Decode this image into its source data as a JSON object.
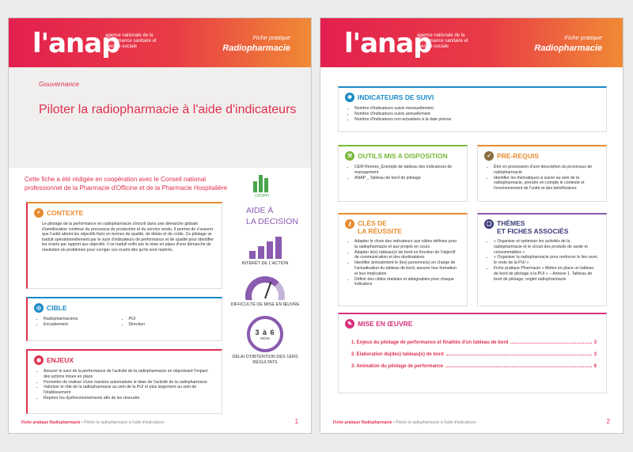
{
  "common": {
    "logo": "l'anap",
    "logo_sub": "agence nationale de la performance sanitaire et médico-sociale",
    "fiche_label": "Fiche pratique",
    "fiche_title": "Radiopharmacie",
    "footer_prefix": "Fiche pratique Radiopharmacie",
    "footer_title": " • Piloter la radiopharmacie à l'aide d'indicateurs"
  },
  "page1": {
    "section": "Gouvernance",
    "title": "Piloter la radiopharmacie à l'aide d'indicateurs",
    "cooperation": "Cette fiche a été rédigée en coopération avec le Conseil national professionnel de la Pharmacie d'Officine et de la Pharmacie Hospitalière",
    "cpoph_label": "CPOPH",
    "contexte": {
      "title": "CONTEXTE",
      "text": "Le pilotage de la performance en radiopharmacie s'inscrit dans une démarche globale d'amélioration continue du processus de production et du service rendu. Il permet de s'assurer que l'unité atteint les objectifs fixés en termes de qualité, de délais et de coûts. Ce pilotage se traduit opérationnellement par le suivi d'indicateurs de performance et de qualité pour identifier les écarts par rapport aux objectifs. Il se traduit enfin par la mise en place d'une démarche de résolution de problèmes pour corriger ces écarts dès qu'ils sont repérés."
    },
    "cible": {
      "title": "CIBLE",
      "items": [
        "Radiopharmaciens",
        "PUI",
        "Encadrement",
        "Direction"
      ]
    },
    "enjeux": {
      "title": "ENJEUX",
      "items": [
        "Assurer le suivi de la performance de l'activité de la radiopharmacie en objectivant l'impact des actions mises en place",
        "Permettre de réaliser d'une manière automatisée le bilan de l'activité de la radiopharmacie",
        "Valoriser le rôle de la radiopharmacie au sein de la PUI et plus largement au sein de l'établissement",
        "Repérer les dysfonctionnements afin de les résoudre"
      ]
    },
    "aide": {
      "title_1": "AIDE À",
      "title_2": "LA DÉCISION",
      "interet_label": "INTÉRÊT DE L'ACTION",
      "difficulte_label": "DIFFICULTÉ DE MISE EN ŒUVRE",
      "timer_value": "3 à 6",
      "timer_unit": "MOIS",
      "delai_label": "DÉLAI D'OBTENTION DES 1ERS RÉSULTATS"
    },
    "page_number": "1"
  },
  "page2": {
    "indicateurs": {
      "title": "INDICATEURS DE SUIVI",
      "items": [
        "Nombre d'indicateurs suivis mensuellement",
        "Nombre d'indicateurs suivis annuellement",
        "Nombre d'indicateurs non-actualisés à la date prévue"
      ]
    },
    "outils": {
      "title": "OUTILS MIS A DISPOSITION",
      "items": [
        "CEM Rennes_Exemple de tableau des indicateurs de management",
        "ANAP _ Tableau de bord de pilotage"
      ]
    },
    "prerequis": {
      "title": "PRE-REQUIS",
      "items": [
        "Être en possession d'une description du processus de radiopharmacie",
        "Identifier les thématiques à suivre au sein de la radiopharmacie, prendre en compte le contexte et l'environnement de l'unité et des bénéficiaires"
      ]
    },
    "cles": {
      "title_1": "CLÉS DE",
      "title_2": "LA RÉUSSITE",
      "items": [
        "Adapter le choix des indicateurs aux cibles définies pour la radiopharmacie et aux projets en cours",
        "Adapter le(s) tableau(x) de bord en fonction de l'objectif de communication et des destinataires",
        "Identifier précisément le (les) personne(s) en charge de l'actualisation du tableau de bord, assurer leur formation et leur implication",
        "Définir des cibles réalistes et atteignables pour chaque indicateur"
      ]
    },
    "themes": {
      "title_1": "THÈMES",
      "title_2": "ET FICHES ASSOCIÉS",
      "items": [
        "« Organiser et optimiser les activités de la radiopharmacie et le circuit des produits de santé et consommables »",
        "« Organiser la radiopharmacie pour renforcer le lien avec le reste de la PUI »",
        "Fiche pratique Pharmacie « Mettre en place un tableau de bord de pilotage à la PUI » – Annexe 1. Tableau de bord de pilotage, onglet radiopharmacie"
      ]
    },
    "mise": {
      "title": "MISE EN ŒUVRE",
      "toc": [
        {
          "label": "1.  Enjeux du pilotage de performance et finalités d'un tableau de bord",
          "page": "3"
        },
        {
          "label": "2.  Elaboration du(des) tableau(x) de bord",
          "page": "3"
        },
        {
          "label": "3.  Animation du pilotage de performance",
          "page": "8"
        }
      ]
    },
    "page_number": "2"
  },
  "colors": {
    "brand_red": "#e0304e",
    "orange": "#f08a35",
    "purple": "#8a5bb0",
    "blue": "#1a8ac6",
    "green": "#7ab93a"
  },
  "icons": [
    "search-icon",
    "target-icon",
    "bullseye-icon",
    "check-icon",
    "tools-icon",
    "key-icon",
    "book-icon",
    "pencil-icon",
    "gauge-icon",
    "timer-icon",
    "bar-chart-icon"
  ]
}
